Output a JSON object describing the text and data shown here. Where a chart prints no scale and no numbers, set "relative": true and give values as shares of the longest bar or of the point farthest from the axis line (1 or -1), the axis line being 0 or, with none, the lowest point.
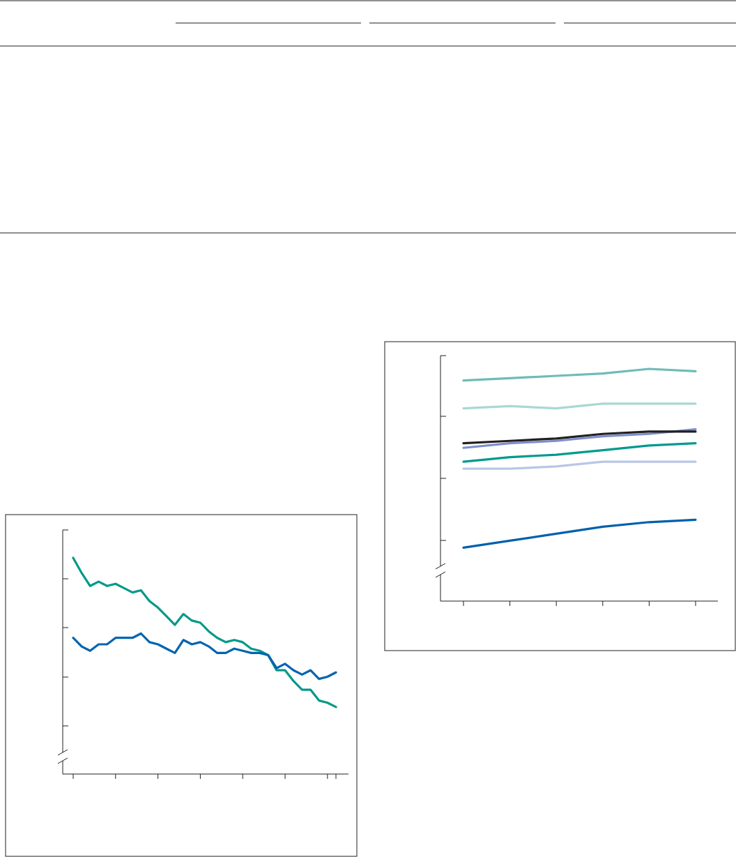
{
  "chart_data": [
    {
      "type": "line",
      "relative": true,
      "categories": [
        null,
        null,
        null,
        null,
        null,
        null,
        null,
        null,
        null,
        null,
        null,
        null,
        null,
        null,
        null,
        null,
        null,
        null,
        null,
        null,
        null,
        null,
        null,
        null,
        null,
        null,
        null,
        null,
        null,
        null,
        null,
        null
      ],
      "series": [
        {
          "color": "#00998a",
          "values": [
            1.0,
            0.93,
            0.87,
            0.89,
            0.87,
            0.88,
            0.86,
            0.84,
            0.85,
            0.8,
            0.77,
            0.73,
            0.69,
            0.74,
            0.71,
            0.7,
            0.66,
            0.63,
            0.61,
            0.62,
            0.61,
            0.58,
            0.57,
            0.55,
            0.48,
            0.48,
            0.43,
            0.39,
            0.39,
            0.34,
            0.33,
            0.31
          ]
        },
        {
          "color": "#0064b0",
          "values": [
            0.63,
            0.59,
            0.57,
            0.6,
            0.6,
            0.63,
            0.63,
            0.63,
            0.65,
            0.61,
            0.6,
            0.58,
            0.56,
            0.62,
            0.6,
            0.61,
            0.59,
            0.56,
            0.56,
            0.58,
            0.57,
            0.56,
            0.56,
            0.55,
            0.49,
            0.51,
            0.48,
            0.46,
            0.48,
            0.44,
            0.45,
            0.47
          ]
        }
      ]
    },
    {
      "type": "line",
      "relative": true,
      "categories": [
        null,
        null,
        null,
        null,
        null,
        null
      ],
      "series": [
        {
          "color": "#6cbcb8",
          "values": [
            0.95,
            0.96,
            0.97,
            0.98,
            1.0,
            0.99
          ]
        },
        {
          "color": "#a9d8d3",
          "values": [
            0.83,
            0.84,
            0.83,
            0.85,
            0.85,
            0.85
          ]
        },
        {
          "color": "#7b8fc9",
          "values": [
            0.66,
            0.68,
            0.69,
            0.71,
            0.72,
            0.74
          ]
        },
        {
          "color": "#231f20",
          "values": [
            0.68,
            0.69,
            0.7,
            0.72,
            0.73,
            0.73
          ]
        },
        {
          "color": "#009a8e",
          "values": [
            0.6,
            0.62,
            0.63,
            0.65,
            0.67,
            0.68
          ]
        },
        {
          "color": "#b9c6e6",
          "values": [
            0.57,
            0.57,
            0.58,
            0.6,
            0.6,
            0.6
          ]
        },
        {
          "color": "#0060ad",
          "values": [
            0.23,
            0.26,
            0.29,
            0.32,
            0.34,
            0.35
          ]
        }
      ]
    }
  ]
}
